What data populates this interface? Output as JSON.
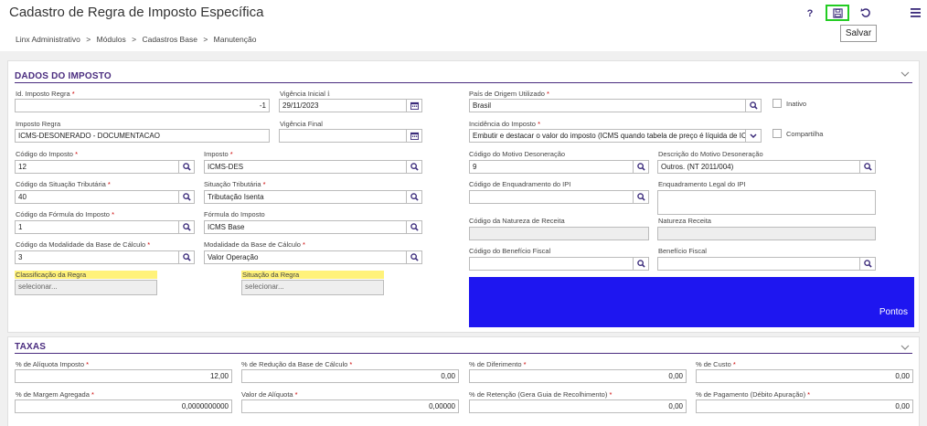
{
  "header": {
    "title": "Cadastro de Regra de Imposto Específica",
    "tooltip": "Salvar",
    "help_label": "?"
  },
  "breadcrumb": {
    "items": [
      "Linx Administrativo",
      "Módulos",
      "Cadastros Base",
      "Manutenção"
    ],
    "separator": ">"
  },
  "colors": {
    "accent": "#4a2c7f",
    "highlight": "#fff27a",
    "save_border": "#22cc22",
    "pontos_bg": "#1e16f0"
  },
  "dados": {
    "title": "DADOS DO IMPOSTO",
    "fields": {
      "id_regra": {
        "label": "Id. Imposto Regra",
        "req": "*",
        "value": "-1"
      },
      "vigencia_inicial": {
        "label": "Vigência Inicial",
        "value": "29/11/2023"
      },
      "imposto_regra": {
        "label": "Imposto Regra",
        "value": "ICMS-DESONERADO - DOCUMENTACAO"
      },
      "vigencia_final": {
        "label": "Vigência Final",
        "value": ""
      },
      "codigo_imposto": {
        "label": "Código do Imposto",
        "req": "*",
        "value": "12"
      },
      "imposto": {
        "label": "Imposto",
        "req": "*",
        "value": "ICMS-DES"
      },
      "cst": {
        "label": "Código da Situação Tributária",
        "req": "*",
        "value": "40"
      },
      "situacao_tributaria": {
        "label": "Situação Tributária",
        "req": "*",
        "value": "Tributação Isenta"
      },
      "cod_formula": {
        "label": "Código da Fórmula do Imposto",
        "req": "*",
        "value": "1"
      },
      "formula": {
        "label": "Fórmula do Imposto",
        "value": "ICMS Base"
      },
      "cod_modalidade": {
        "label": "Código da Modalidade da Base de Cálculo",
        "req": "*",
        "value": "3"
      },
      "modalidade": {
        "label": "Modalidade da Base de Cálculo",
        "req": "*",
        "value": "Valor Operação"
      },
      "classificacao": {
        "label": "Classificação da Regra",
        "placeholder": "selecionar..."
      },
      "situacao_regra": {
        "label": "Situação da Regra",
        "placeholder": "selecionar..."
      },
      "pais": {
        "label": "País de Origem Utilizado",
        "req": "*",
        "value": "Brasil"
      },
      "inativo": {
        "label": "Inativo"
      },
      "incidencia": {
        "label": "Incidência do Imposto",
        "req": "*",
        "value": "Embutir e destacar o valor do imposto (ICMS quando tabela de preço é líquida de ICM"
      },
      "compartilha": {
        "label": "Compartilha"
      },
      "cod_motivo": {
        "label": "Código do Motivo Desoneração",
        "value": "9"
      },
      "desc_motivo": {
        "label": "Descrição do Motivo Desoneração",
        "value": "Outros. (NT 2011/004)"
      },
      "cod_enq_ipi": {
        "label": "Código de Enquadramento do IPI",
        "value": ""
      },
      "enq_legal_ipi": {
        "label": "Enquadramento Legal do IPI",
        "value": ""
      },
      "cod_natureza": {
        "label": "Código da Natureza de Receita",
        "value": ""
      },
      "natureza": {
        "label": "Natureza Receita",
        "value": ""
      },
      "cod_beneficio": {
        "label": "Código do Benefício Fiscal",
        "value": ""
      },
      "beneficio": {
        "label": "Benefício Fiscal",
        "value": ""
      },
      "pontos": "Pontos"
    }
  },
  "taxas": {
    "title": "TAXAS",
    "fields": {
      "aliquota": {
        "label": "% de Alíquota Imposto",
        "req": "*",
        "value": "12,00"
      },
      "reducao": {
        "label": "% de Redução da Base de Cálculo",
        "req": "*",
        "value": "0,00"
      },
      "diferimento": {
        "label": "% de Diferimento",
        "req": "*",
        "value": "0,00"
      },
      "custo": {
        "label": "% de Custo",
        "req": "*",
        "value": "0,00"
      },
      "margem": {
        "label": "% de Margem Agregada",
        "req": "*",
        "value": "0,0000000000"
      },
      "valor_aliquota": {
        "label": "Valor de Alíquota",
        "req": "*",
        "value": "0,00000"
      },
      "retencao": {
        "label": "% de Retenção (Gera Guia de Recolhimento)",
        "req": "*",
        "value": "0,00"
      },
      "pagamento": {
        "label": "% de Pagamento (Débito Apuração)",
        "req": "*",
        "value": "0,00"
      }
    }
  }
}
